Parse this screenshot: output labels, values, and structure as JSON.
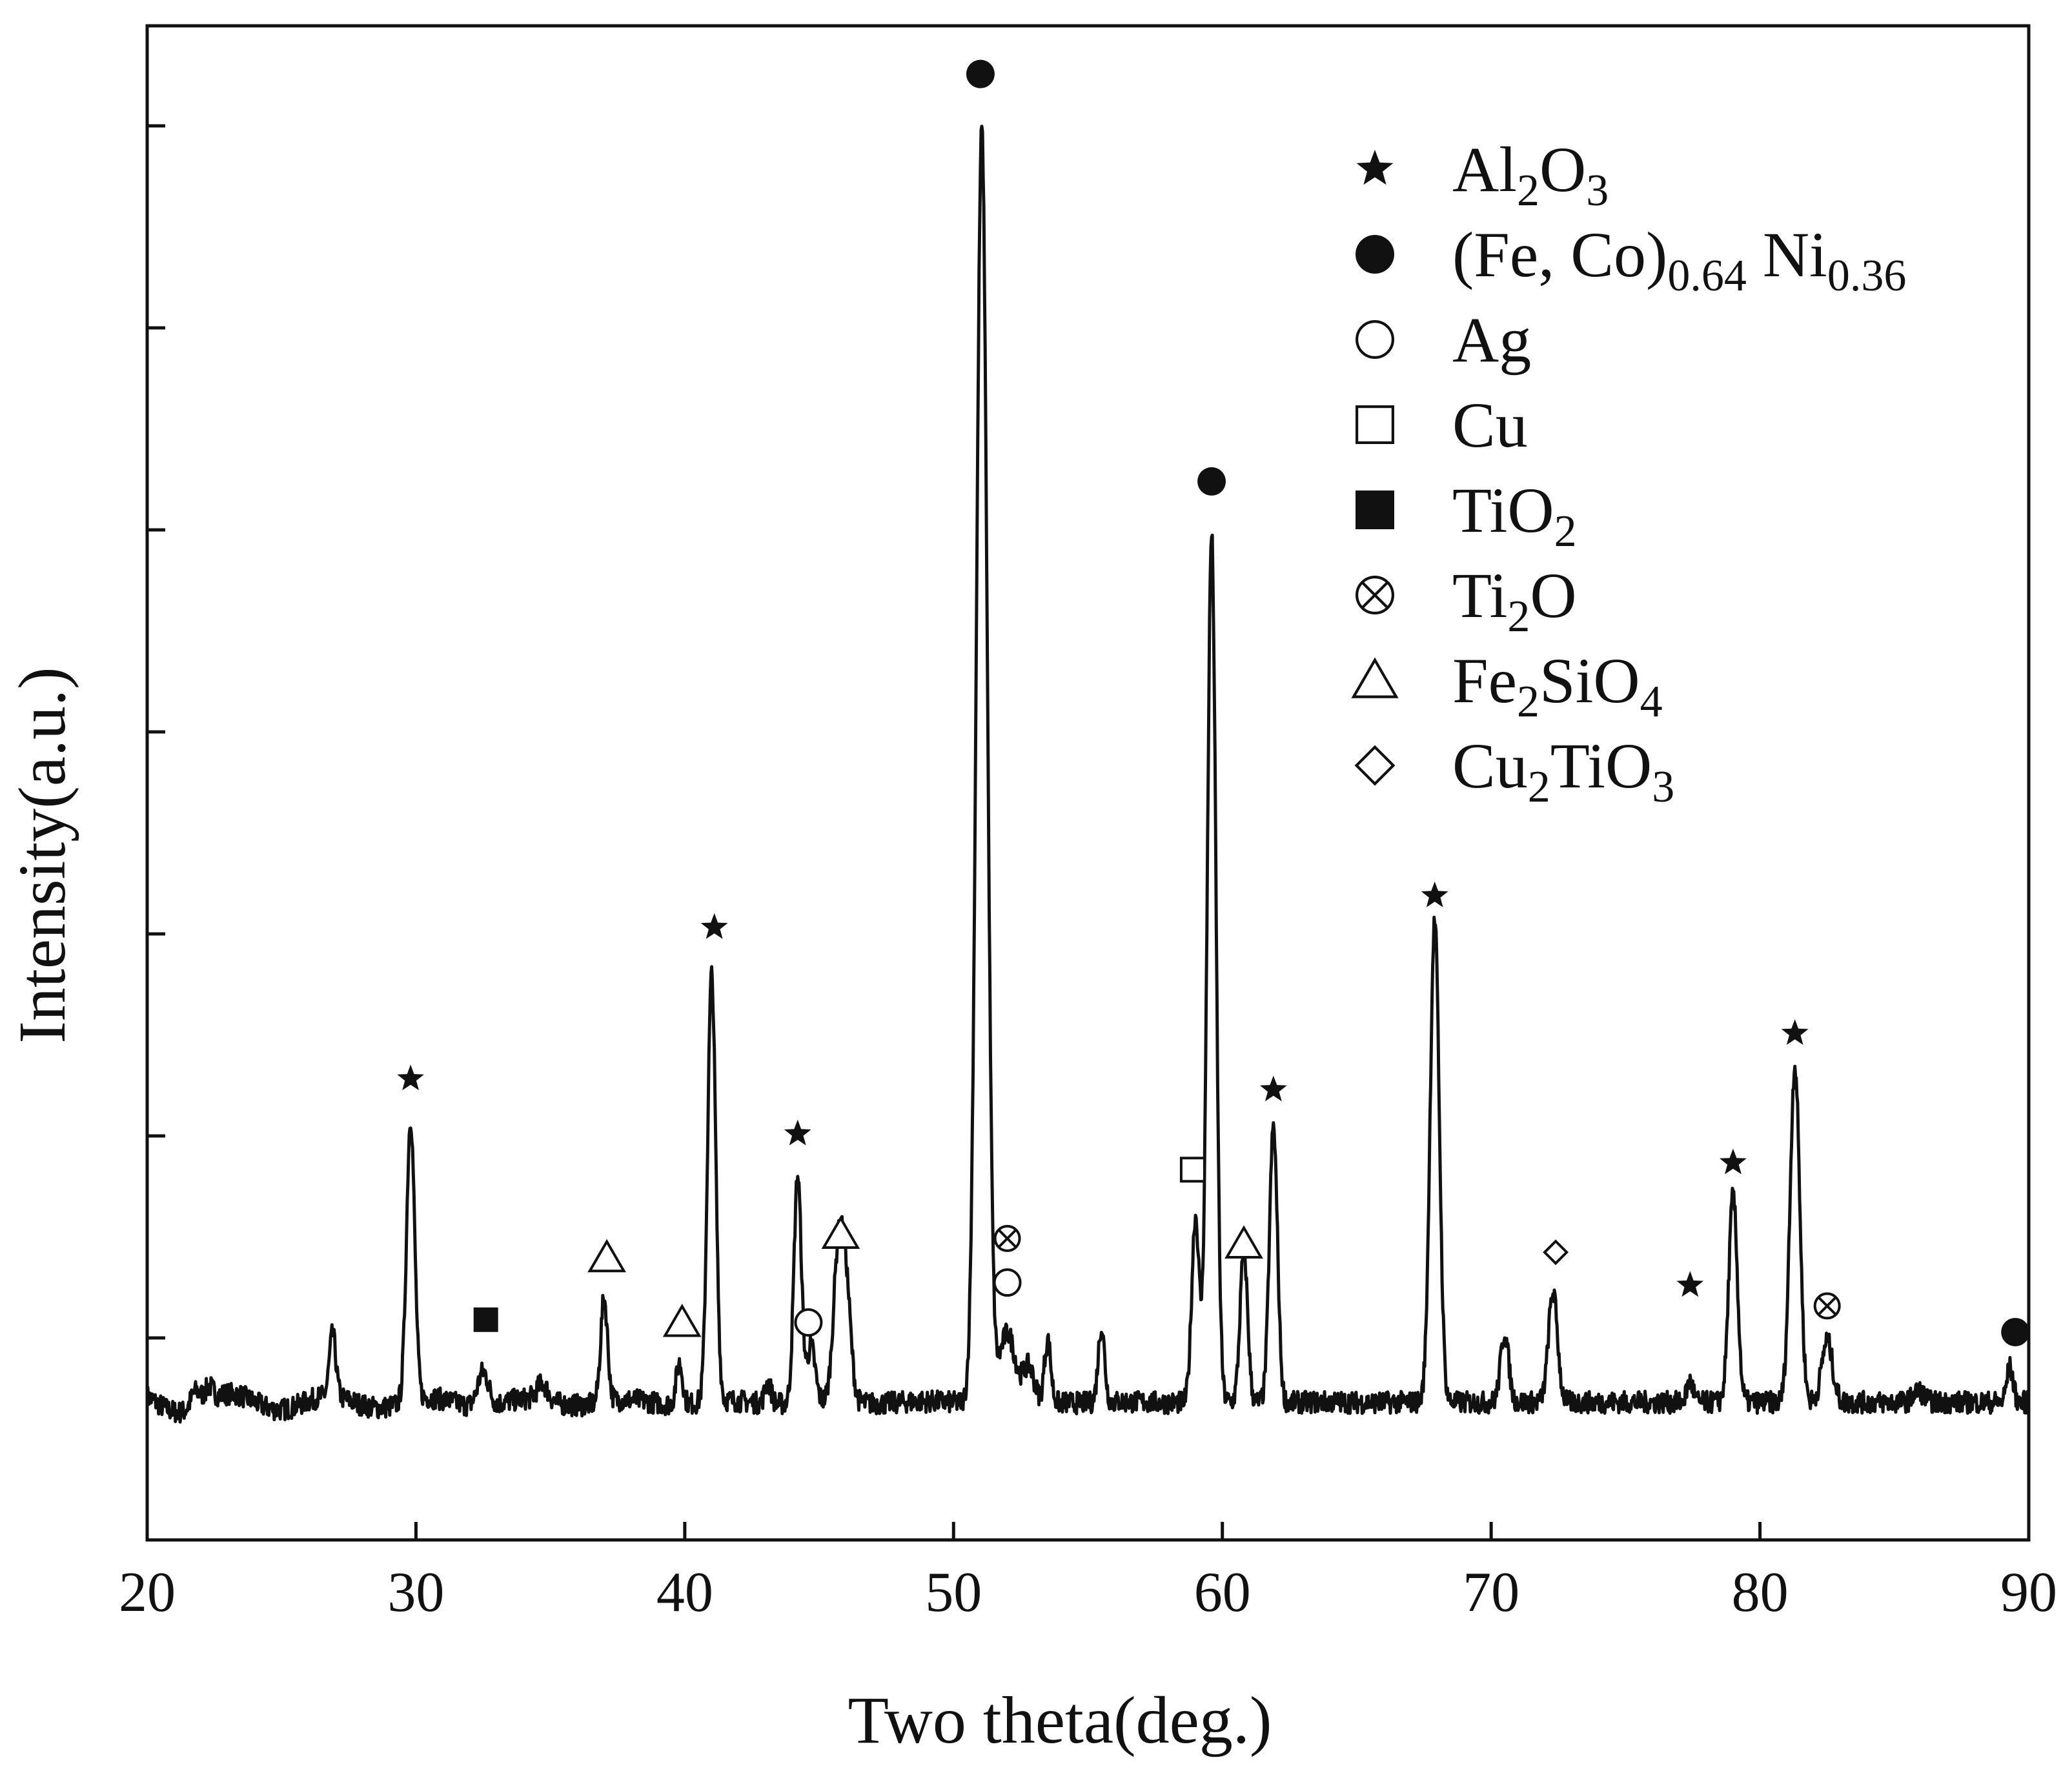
{
  "chart_data": {
    "type": "line",
    "title": "",
    "xlabel": "Two theta(deg.)",
    "ylabel": "Intensity(a.u.)",
    "xlim": [
      20,
      90
    ],
    "ylim": [
      -10,
      100
    ],
    "x_ticks": [
      "20",
      "30",
      "40",
      "50",
      "60",
      "70",
      "80",
      "90"
    ],
    "y_ticks_count": 7,
    "y_tick_labels": false,
    "grid": false,
    "line_color": "#111111",
    "baseline": 0,
    "noise": 1.0,
    "peaks": [
      {
        "x": 21.8,
        "h": 1.2,
        "w": 0.18
      },
      {
        "x": 22.3,
        "h": 1.0,
        "w": 0.15
      },
      {
        "x": 26.9,
        "h": 4.5,
        "w": 0.12
      },
      {
        "x": 29.8,
        "h": 20.5,
        "w": 0.15
      },
      {
        "x": 32.5,
        "h": 2.5,
        "w": 0.2
      },
      {
        "x": 34.7,
        "h": 1.2,
        "w": 0.2
      },
      {
        "x": 37.0,
        "h": 7.5,
        "w": 0.13
      },
      {
        "x": 39.8,
        "h": 3.0,
        "w": 0.12
      },
      {
        "x": 41.0,
        "h": 31.0,
        "w": 0.15
      },
      {
        "x": 43.1,
        "h": 1.5,
        "w": 0.12
      },
      {
        "x": 44.2,
        "h": 16.5,
        "w": 0.14
      },
      {
        "x": 44.7,
        "h": 4.0,
        "w": 0.15
      },
      {
        "x": 45.7,
        "h": 10.0,
        "w": 0.18
      },
      {
        "x": 46.0,
        "h": 8.0,
        "w": 0.18
      },
      {
        "x": 51.05,
        "h": 92.5,
        "w": 0.2
      },
      {
        "x": 52.0,
        "h": 5.0,
        "w": 0.3
      },
      {
        "x": 52.8,
        "h": 2.5,
        "w": 0.2
      },
      {
        "x": 53.5,
        "h": 4.5,
        "w": 0.12
      },
      {
        "x": 55.5,
        "h": 5.5,
        "w": 0.12
      },
      {
        "x": 59.0,
        "h": 13.5,
        "w": 0.14
      },
      {
        "x": 59.6,
        "h": 63.0,
        "w": 0.16
      },
      {
        "x": 60.8,
        "h": 11.0,
        "w": 0.14
      },
      {
        "x": 61.9,
        "h": 20.0,
        "w": 0.15
      },
      {
        "x": 67.9,
        "h": 35.0,
        "w": 0.17
      },
      {
        "x": 70.5,
        "h": 5.0,
        "w": 0.15
      },
      {
        "x": 72.3,
        "h": 8.0,
        "w": 0.17
      },
      {
        "x": 77.4,
        "h": 1.5,
        "w": 0.12
      },
      {
        "x": 79.0,
        "h": 15.0,
        "w": 0.16
      },
      {
        "x": 81.3,
        "h": 24.5,
        "w": 0.18
      },
      {
        "x": 82.5,
        "h": 4.5,
        "w": 0.2
      },
      {
        "x": 85.9,
        "h": 0.8,
        "w": 0.2
      },
      {
        "x": 89.3,
        "h": 2.5,
        "w": 0.12
      }
    ],
    "phases": [
      {
        "symbol": "star",
        "name": "Al2O3"
      },
      {
        "symbol": "filled-circle",
        "name": "(Fe, Co)0.64 Ni0.36"
      },
      {
        "symbol": "open-circle",
        "name": "Ag"
      },
      {
        "symbol": "open-square",
        "name": "Cu"
      },
      {
        "symbol": "filled-square",
        "name": "TiO2"
      },
      {
        "symbol": "circle-cross",
        "name": "Ti2O"
      },
      {
        "symbol": "open-triangle",
        "name": "Fe2SiO4"
      },
      {
        "symbol": "open-diamond",
        "name": "Cu2TiO3"
      }
    ],
    "peak_markers": [
      {
        "symbol": "star",
        "x": 29.8,
        "y": 23.5
      },
      {
        "symbol": "filled-square",
        "x": 32.6,
        "y": 6.0
      },
      {
        "symbol": "open-triangle",
        "x": 37.1,
        "y": 10.5
      },
      {
        "symbol": "open-triangle",
        "x": 39.9,
        "y": 5.8
      },
      {
        "symbol": "star",
        "x": 41.1,
        "y": 34.5
      },
      {
        "symbol": "star",
        "x": 44.2,
        "y": 19.5
      },
      {
        "symbol": "open-circle",
        "x": 44.6,
        "y": 5.8
      },
      {
        "symbol": "open-triangle",
        "x": 45.8,
        "y": 12.2
      },
      {
        "symbol": "filled-circle",
        "x": 51.0,
        "y": 96.5
      },
      {
        "symbol": "circle-cross",
        "x": 52.0,
        "y": 11.9
      },
      {
        "symbol": "open-circle",
        "x": 52.0,
        "y": 8.7
      },
      {
        "symbol": "open-square",
        "x": 58.9,
        "y": 16.9
      },
      {
        "symbol": "filled-circle",
        "x": 59.6,
        "y": 66.9
      },
      {
        "symbol": "open-triangle",
        "x": 60.8,
        "y": 11.5
      },
      {
        "symbol": "star",
        "x": 61.9,
        "y": 22.7
      },
      {
        "symbol": "star",
        "x": 67.9,
        "y": 36.8
      },
      {
        "symbol": "open-diamond",
        "x": 72.4,
        "y": 10.9
      },
      {
        "symbol": "star",
        "x": 77.4,
        "y": 8.5
      },
      {
        "symbol": "star",
        "x": 79.0,
        "y": 17.4
      },
      {
        "symbol": "star",
        "x": 81.3,
        "y": 26.8
      },
      {
        "symbol": "circle-cross",
        "x": 82.5,
        "y": 7.0
      },
      {
        "symbol": "filled-circle",
        "x": 89.5,
        "y": 5.1
      }
    ]
  }
}
